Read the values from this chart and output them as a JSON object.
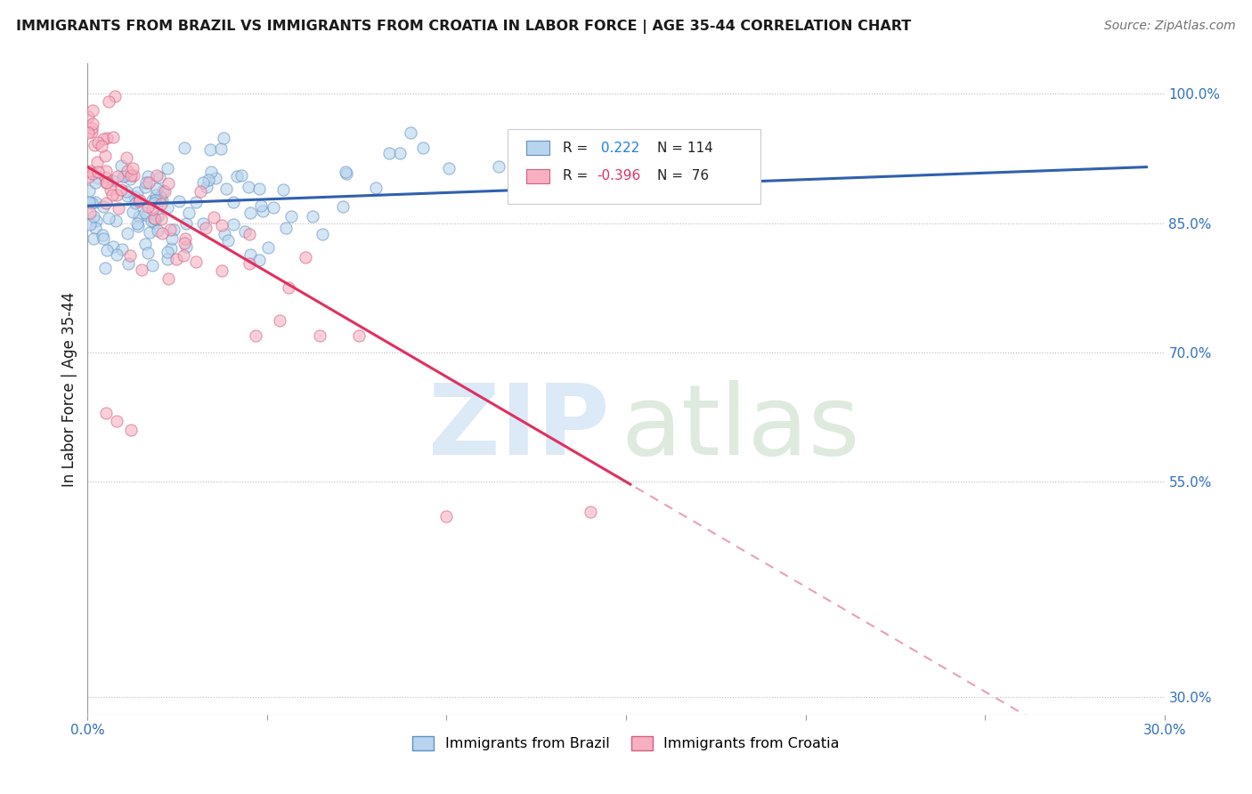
{
  "title": "IMMIGRANTS FROM BRAZIL VS IMMIGRANTS FROM CROATIA IN LABOR FORCE | AGE 35-44 CORRELATION CHART",
  "source": "Source: ZipAtlas.com",
  "ylabel": "In Labor Force | Age 35-44",
  "xlim": [
    0.0,
    0.3
  ],
  "ylim": [
    0.28,
    1.035
  ],
  "xticks": [
    0.0,
    0.05,
    0.1,
    0.15,
    0.2,
    0.25,
    0.3
  ],
  "xticklabels": [
    "0.0%",
    "",
    "",
    "",
    "",
    "",
    "30.0%"
  ],
  "ytick_positions": [
    0.3,
    0.55,
    0.7,
    0.85,
    1.0
  ],
  "ytick_labels": [
    "30.0%",
    "55.0%",
    "70.0%",
    "85.0%",
    "100.0%"
  ],
  "brazil_R": 0.222,
  "brazil_N": 114,
  "croatia_R": -0.396,
  "croatia_N": 76,
  "brazil_color": "#b8d4ee",
  "brazil_edge": "#6090c0",
  "croatia_color": "#f8b0c0",
  "croatia_edge": "#d06080",
  "brazil_line_color": "#3060b0",
  "croatia_line_color": "#e03060",
  "croatia_dash_color": "#e8a0b8",
  "watermark_zip_color": "#c0d8f0",
  "watermark_atlas_color": "#a8c8a8",
  "background_color": "#ffffff",
  "grid_color": "#bbbbbb",
  "title_color": "#1a1a1a",
  "axis_label_color": "#3070c0",
  "tick_label_color": "#3070c0",
  "legend_brazil_R_color": "#2080e8",
  "legend_croatia_R_color": "#e03060",
  "legend_N_color": "#1a1a1a",
  "marker_size": 90,
  "marker_alpha": 0.6
}
